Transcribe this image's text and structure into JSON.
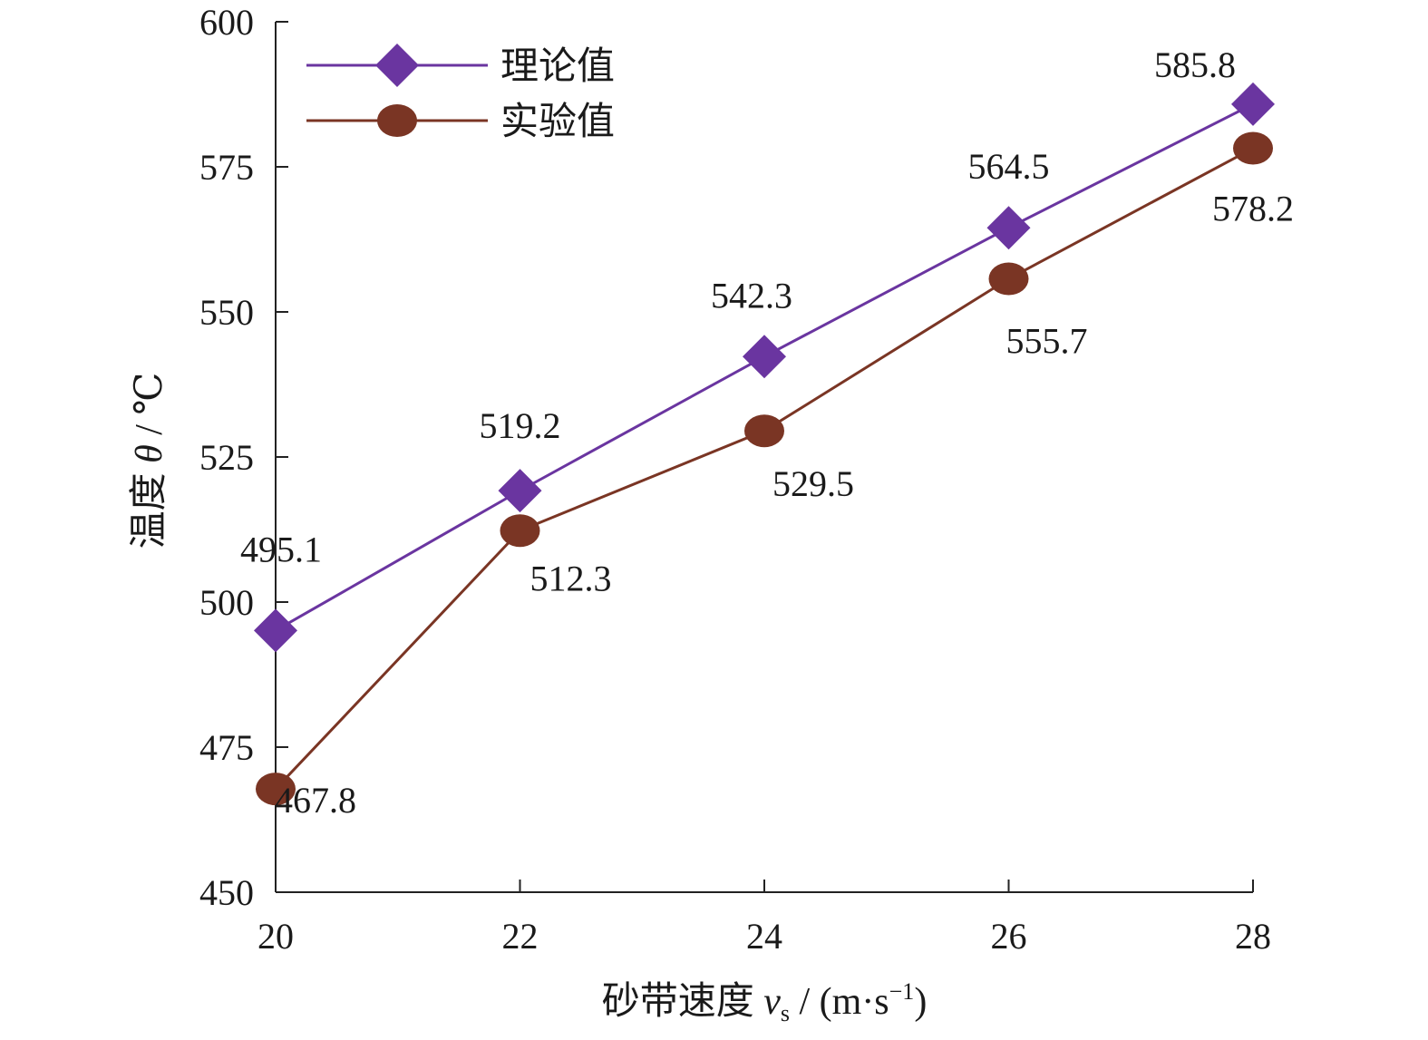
{
  "chart_data": {
    "type": "line",
    "xlabel_main": "砂带速度 ",
    "xlabel_var": "v",
    "xlabel_sub": "s",
    "xlabel_unit": " / (m·s",
    "xlabel_sup": "−1",
    "xlabel_close": ")",
    "ylabel_main": "温度 ",
    "ylabel_var": "θ",
    "ylabel_unit": " / ℃",
    "xlim": [
      20,
      28
    ],
    "ylim": [
      450,
      600
    ],
    "xticks": [
      20,
      22,
      24,
      26,
      28
    ],
    "yticks": [
      450,
      475,
      500,
      525,
      550,
      575,
      600
    ],
    "x": [
      20,
      22,
      24,
      26,
      28
    ],
    "legend_position": "top-left",
    "grid": false,
    "series": [
      {
        "name": "理论值",
        "marker": "diamond",
        "color": "#6a35a0",
        "values": [
          495.1,
          519.2,
          542.3,
          564.5,
          585.8
        ],
        "labels": [
          "495.1",
          "519.2",
          "542.3",
          "564.5",
          "585.8"
        ]
      },
      {
        "name": "实验值",
        "marker": "circle",
        "color": "#7a3524",
        "values": [
          467.8,
          512.3,
          529.5,
          555.7,
          578.2
        ],
        "labels": [
          "467.8",
          "512.3",
          "529.5",
          "555.7",
          "578.2"
        ]
      }
    ]
  }
}
